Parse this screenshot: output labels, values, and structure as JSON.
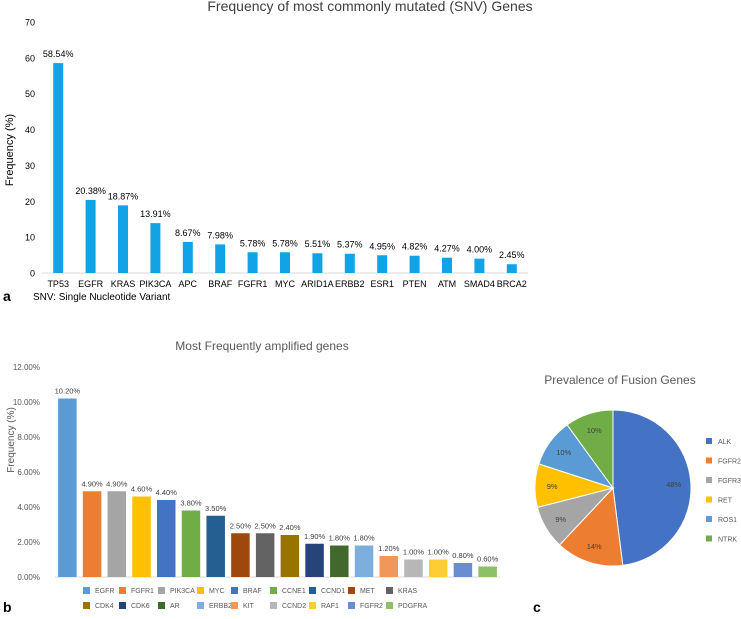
{
  "panels": {
    "a": "a",
    "b": "b",
    "c": "c",
    "note": "SNV: Single Nucleotide Variant"
  },
  "chart_data": [
    {
      "type": "bar",
      "title": "Frequency of most commonly mutated (SNV) Genes",
      "xlabel": "",
      "ylabel": "Frequency (%)",
      "ylim": [
        0,
        70
      ],
      "yticks": [
        "0",
        "10",
        "20",
        "30",
        "40",
        "50",
        "60",
        "70"
      ],
      "grid": false,
      "color": "#11a3e6",
      "categories": [
        "TP53",
        "EGFR",
        "KRAS",
        "PIK3CA",
        "APC",
        "BRAF",
        "FGFR1",
        "MYC",
        "ARID1A",
        "ERBB2",
        "ESR1",
        "PTEN",
        "ATM",
        "SMAD4",
        "BRCA2"
      ],
      "values": [
        58.54,
        20.38,
        18.87,
        13.91,
        8.67,
        7.98,
        5.78,
        5.78,
        5.51,
        5.37,
        4.95,
        4.82,
        4.27,
        4.0,
        2.45
      ],
      "labels": [
        "58.54%",
        "20.38%",
        "18.87%",
        "13.91%",
        "8.67%",
        "7.98%",
        "5.78%",
        "5.78%",
        "5.51%",
        "5.37%",
        "4.95%",
        "4.82%",
        "4.27%",
        "4.00%",
        "2.45%"
      ]
    },
    {
      "type": "bar",
      "title": "Most Frequently amplified genes",
      "xlabel": "",
      "ylabel": "Frequency (%)",
      "ylim": [
        0,
        12
      ],
      "yticks": [
        "0.00%",
        "2.00%",
        "4.00%",
        "6.00%",
        "8.00%",
        "10.00%",
        "12.00%"
      ],
      "grid": false,
      "legend": "bottom",
      "categories": [
        "EGFR",
        "FGFR1",
        "PIK3CA",
        "MYC",
        "BRAF",
        "CCNE1",
        "CCND1",
        "MET",
        "KRAS",
        "CDK4",
        "CDK6",
        "AR",
        "ERBB2",
        "KIT",
        "CCND2",
        "RAF1",
        "FGFR2",
        "PDGFRA"
      ],
      "values": [
        10.2,
        4.9,
        4.9,
        4.6,
        4.4,
        3.8,
        3.5,
        2.5,
        2.5,
        2.4,
        1.9,
        1.8,
        1.8,
        1.2,
        1.0,
        1.0,
        0.8,
        0.6
      ],
      "labels": [
        "10.20%",
        "4.90%",
        "4.90%",
        "4.60%",
        "4.40%",
        "3.80%",
        "3.50%",
        "2.50%",
        "2.50%",
        "2.40%",
        "1.90%",
        "1.80%",
        "1.80%",
        "1.20%",
        "1.00%",
        "1.00%",
        "0.80%",
        "0.60%"
      ],
      "colors": [
        "#5b9bd5",
        "#ed7d31",
        "#a5a5a5",
        "#ffc000",
        "#4472c4",
        "#70ad47",
        "#255e91",
        "#9e480e",
        "#636363",
        "#997300",
        "#264478",
        "#43682b",
        "#7cafdd",
        "#f1975a",
        "#b7b7b7",
        "#ffcd33",
        "#698ed0",
        "#8cc168"
      ]
    },
    {
      "type": "pie",
      "title": "Prevalence of Fusion Genes",
      "legend": "right",
      "categories": [
        "ALK",
        "FGFR2",
        "FGFR3",
        "RET",
        "ROS1",
        "NTRK"
      ],
      "values": [
        48,
        14,
        9,
        9,
        10,
        10
      ],
      "labels": [
        "48%",
        "14%",
        "9%",
        "9%",
        "10%",
        "10%"
      ],
      "colors": [
        "#4472c4",
        "#ed7d31",
        "#a5a5a5",
        "#ffc000",
        "#5b9bd5",
        "#70ad47"
      ]
    }
  ]
}
